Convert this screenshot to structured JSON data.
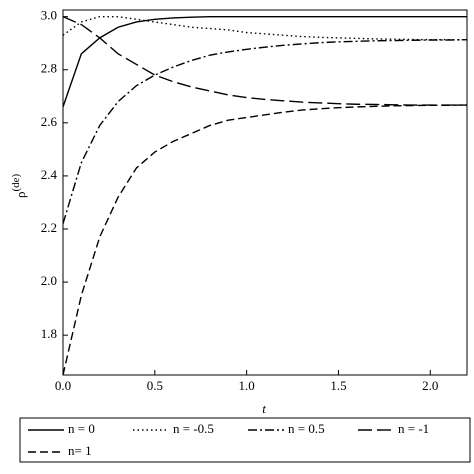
{
  "chart_data": {
    "type": "line",
    "xlabel": "t",
    "ylabel": "ρ",
    "ylabel_sup": "(de)",
    "x": [
      0,
      0.1,
      0.2,
      0.3,
      0.4,
      0.5,
      0.6,
      0.7,
      0.8,
      0.9,
      1,
      1.1,
      1.2,
      1.3,
      1.4,
      1.5,
      1.6,
      1.7,
      1.8,
      1.9,
      2,
      2.1,
      2.2
    ],
    "xlim": [
      0,
      2.2
    ],
    "xticks": [
      {
        "value": 0,
        "label": "0.0"
      },
      0.5,
      {
        "value": 1,
        "label": "1.0"
      },
      1.5,
      {
        "value": 2,
        "label": "2.0"
      }
    ],
    "ylim": [
      1.65,
      3.025
    ],
    "yticks": [
      1.8,
      {
        "value": 2,
        "label": "2.0"
      },
      2.2,
      2.4,
      2.6,
      2.8,
      {
        "value": 3,
        "label": "3.0"
      }
    ],
    "series": [
      {
        "name": "n = 0",
        "color": "#000000",
        "dash": "none",
        "values": [
          2.66,
          2.86,
          2.92,
          2.96,
          2.98,
          2.99,
          2.995,
          2.998,
          3.0,
          3.0,
          3.0,
          3.0,
          3.0,
          3.0,
          3.0,
          3.0,
          3.0,
          3.0,
          3.0,
          3.0,
          3.0,
          3.0,
          3.0
        ]
      },
      {
        "name": "n = -0.5",
        "color": "#000000",
        "dash": "1.5 3",
        "values": [
          2.93,
          2.98,
          3.0,
          3.0,
          2.99,
          2.98,
          2.97,
          2.96,
          2.955,
          2.95,
          2.94,
          2.935,
          2.93,
          2.925,
          2.922,
          2.92,
          2.918,
          2.916,
          2.915,
          2.914,
          2.913,
          2.913,
          2.913
        ]
      },
      {
        "name": "n = 0.5",
        "color": "#000000",
        "dash": "9 3 2 3",
        "values": [
          2.22,
          2.45,
          2.59,
          2.68,
          2.74,
          2.78,
          2.81,
          2.835,
          2.855,
          2.867,
          2.877,
          2.885,
          2.892,
          2.897,
          2.902,
          2.905,
          2.907,
          2.909,
          2.91,
          2.911,
          2.912,
          2.912,
          2.913
        ]
      },
      {
        "name": "n = -1",
        "color": "#000000",
        "dash": "14 5",
        "values": [
          3.0,
          2.97,
          2.92,
          2.86,
          2.82,
          2.78,
          2.755,
          2.735,
          2.72,
          2.705,
          2.695,
          2.688,
          2.683,
          2.678,
          2.675,
          2.672,
          2.67,
          2.669,
          2.668,
          2.667,
          2.667,
          2.667,
          2.667
        ]
      },
      {
        "name": "n= 1",
        "color": "#000000",
        "dash": "8 4",
        "values": [
          1.65,
          1.95,
          2.17,
          2.32,
          2.43,
          2.49,
          2.53,
          2.56,
          2.59,
          2.61,
          2.62,
          2.63,
          2.64,
          2.648,
          2.653,
          2.657,
          2.66,
          2.662,
          2.664,
          2.665,
          2.666,
          2.666,
          2.667
        ]
      }
    ]
  }
}
